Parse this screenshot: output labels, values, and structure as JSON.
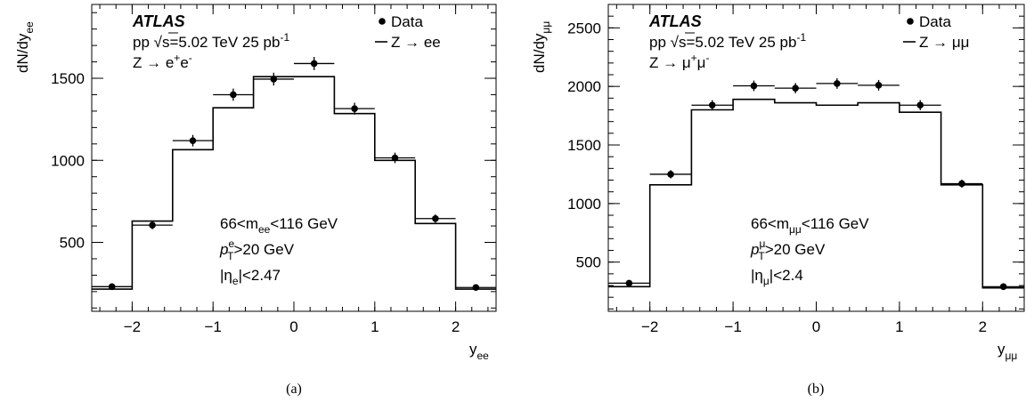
{
  "chart_data": [
    {
      "type": "line",
      "panel_caption": "(a)",
      "experiment": "ATLAS",
      "energy_line": {
        "pre": "pp  √",
        "mid": "s=5.02 TeV 25 pb",
        "sup": "-1"
      },
      "process_line": {
        "pre": "Z → e",
        "sup1": "+",
        "mid": "e",
        "sup2": "-"
      },
      "legend": {
        "data_label": "Data",
        "mc_label": "Z → ee"
      },
      "cut_lines": [
        {
          "pre": "66<m",
          "sub": "ee",
          "post": "<116 GeV"
        },
        {
          "pre": "p",
          "sup": "e",
          "sub": "T",
          "post": ">20 GeV"
        },
        {
          "pre": "|η",
          "sub": "e",
          "post": "|<2.47"
        }
      ],
      "xlabel": {
        "main": "y",
        "sub": "ee"
      },
      "ylabel": {
        "main": "dN/dy",
        "sub": "ee"
      },
      "xlim": [
        -2.5,
        2.5
      ],
      "ylim": [
        80,
        1950
      ],
      "xticks": [
        -2,
        -1,
        0,
        1,
        2
      ],
      "xtick_labels": [
        "−2",
        "−1",
        "0",
        "1",
        "2"
      ],
      "yticks": [
        500,
        1000,
        1500
      ],
      "yticks_minor_step": 100,
      "xticks_minor_step": 0.2,
      "bin_edges": [
        -2.5,
        -2.0,
        -1.5,
        -1.0,
        -0.5,
        0.0,
        0.5,
        1.0,
        1.5,
        2.0,
        2.5
      ],
      "series": [
        {
          "name": "Data",
          "style": "points",
          "x": [
            -2.25,
            -1.75,
            -1.25,
            -0.75,
            -0.25,
            0.25,
            0.75,
            1.25,
            1.75,
            2.25
          ],
          "y": [
            230,
            605,
            1120,
            1400,
            1495,
            1590,
            1315,
            1015,
            645,
            225
          ],
          "yerr": [
            15,
            25,
            35,
            37,
            39,
            40,
            36,
            32,
            25,
            15
          ]
        },
        {
          "name": "Z → ee",
          "style": "histogram",
          "y": [
            215,
            630,
            1065,
            1320,
            1510,
            1510,
            1285,
            1000,
            615,
            215
          ]
        }
      ]
    },
    {
      "type": "line",
      "panel_caption": "(b)",
      "experiment": "ATLAS",
      "energy_line": {
        "pre": "pp  √",
        "mid": "s=5.02 TeV 25 pb",
        "sup": "-1"
      },
      "process_line": {
        "pre": "Z → μ",
        "sup1": "+",
        "mid": "μ",
        "sup2": "-"
      },
      "legend": {
        "data_label": "Data",
        "mc_label": "Z → μμ"
      },
      "cut_lines": [
        {
          "pre": "66<m",
          "sub": "μμ",
          "post": "<116 GeV"
        },
        {
          "pre": "p",
          "sup": "μ",
          "sub": "T",
          "post": ">20 GeV"
        },
        {
          "pre": "|η",
          "sub": "μ",
          "post": "|<2.4"
        }
      ],
      "xlabel": {
        "main": "y",
        "sub": "μμ"
      },
      "ylabel": {
        "main": "dN/dy",
        "sub": "μμ"
      },
      "xlim": [
        -2.5,
        2.5
      ],
      "ylim": [
        80,
        2700
      ],
      "xticks": [
        -2,
        -1,
        0,
        1,
        2
      ],
      "xtick_labels": [
        "−2",
        "−1",
        "0",
        "1",
        "2"
      ],
      "yticks": [
        500,
        1000,
        1500,
        2000,
        2500
      ],
      "yticks_minor_step": 100,
      "xticks_minor_step": 0.2,
      "bin_edges": [
        -2.5,
        -2.0,
        -1.5,
        -1.0,
        -0.5,
        0.0,
        0.5,
        1.0,
        1.5,
        2.0,
        2.5
      ],
      "series": [
        {
          "name": "Data",
          "style": "points",
          "x": [
            -2.25,
            -1.75,
            -1.25,
            -0.75,
            -0.25,
            0.25,
            0.75,
            1.25,
            1.75,
            2.25
          ],
          "y": [
            320,
            1250,
            1840,
            2005,
            1985,
            2025,
            2010,
            1840,
            1170,
            290
          ],
          "yerr": [
            18,
            35,
            43,
            45,
            44,
            45,
            45,
            43,
            34,
            17
          ]
        },
        {
          "name": "Z → μμ",
          "style": "histogram",
          "y": [
            290,
            1160,
            1800,
            1890,
            1860,
            1840,
            1860,
            1780,
            1160,
            280
          ]
        }
      ]
    }
  ]
}
